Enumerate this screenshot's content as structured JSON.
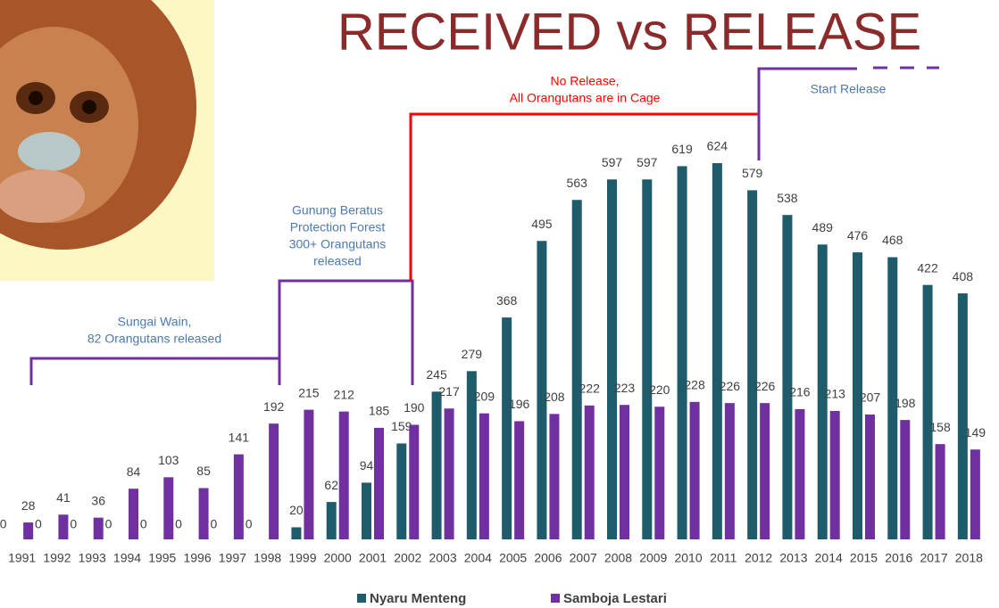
{
  "chart_data": {
    "type": "bar",
    "title": "RECEIVED vs RELEASE",
    "categories": [
      "1991",
      "1992",
      "1993",
      "1994",
      "1995",
      "1996",
      "1997",
      "1998",
      "1999",
      "2000",
      "2001",
      "2002",
      "2003",
      "2004",
      "2005",
      "2006",
      "2007",
      "2008",
      "2009",
      "2010",
      "2011",
      "2012",
      "2013",
      "2014",
      "2015",
      "2016",
      "2017",
      "2018"
    ],
    "series": [
      {
        "name": "Nyaru Menteng",
        "color": "#1f5c6b",
        "values": [
          0,
          0,
          0,
          0,
          0,
          0,
          0,
          0,
          20,
          62,
          94,
          159,
          245,
          279,
          368,
          495,
          563,
          597,
          597,
          619,
          624,
          579,
          538,
          489,
          476,
          468,
          422,
          408
        ]
      },
      {
        "name": "Samboja Lestari",
        "color": "#7030a0",
        "values": [
          28,
          41,
          36,
          84,
          103,
          85,
          141,
          192,
          215,
          212,
          185,
          190,
          217,
          209,
          196,
          208,
          222,
          223,
          220,
          228,
          226,
          226,
          216,
          213,
          207,
          198,
          158,
          149
        ]
      }
    ],
    "annotations": [
      {
        "lines": [
          "Sungai Wain,",
          "82 Orangutans released"
        ],
        "color": "#4a7ab0"
      },
      {
        "lines": [
          "Gunung Beratus",
          "Protection Forest",
          "300+ Orangutans",
          "released"
        ],
        "color": "#4a7ab0"
      },
      {
        "lines": [
          "No Release,",
          "All Orangutans are in Cage"
        ],
        "color": "#ff0000"
      },
      {
        "lines": [
          "Start Release"
        ],
        "color": "#4a7ab0"
      }
    ],
    "legend": "bottom"
  }
}
